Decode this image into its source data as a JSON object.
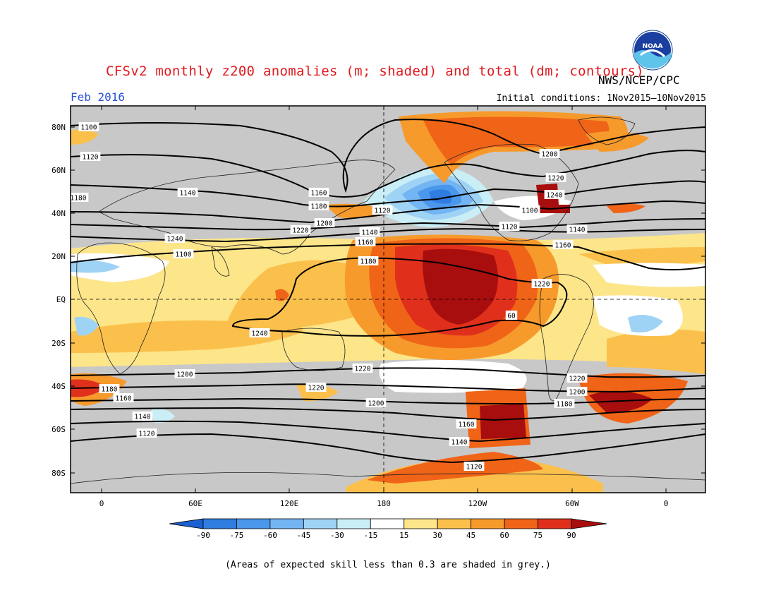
{
  "header": {
    "title": "CFSv2 monthly z200 anomalies (m; shaded) and total (dm; contours)",
    "agency": "NWS/NCEP/CPC",
    "month": "Feb 2016",
    "initial_conditions": "Initial conditions: 1Nov2015–10Nov2015",
    "logo_text": "NOAA"
  },
  "axes": {
    "lat_labels": [
      "80N",
      "60N",
      "40N",
      "20N",
      "EQ",
      "20S",
      "40S",
      "60S",
      "80S"
    ],
    "lon_labels": [
      "0",
      "60E",
      "120E",
      "180",
      "120W",
      "60W",
      "0"
    ]
  },
  "colorbar": {
    "ticks": [
      "-90",
      "-75",
      "-60",
      "-45",
      "-30",
      "-15",
      "15",
      "30",
      "45",
      "60",
      "75",
      "90"
    ],
    "colors": [
      "#1c5fd0",
      "#2f7de0",
      "#4a97ec",
      "#73b4f2",
      "#9fd3f5",
      "#c9eef6",
      "#ffffff",
      "#fde58a",
      "#fbc04c",
      "#f79a2c",
      "#f06418",
      "#e0301c",
      "#a80e0e"
    ]
  },
  "contour_labels": [
    "1100",
    "1120",
    "1140",
    "1160",
    "1180",
    "1200",
    "1220",
    "1240",
    "1100",
    "1120",
    "1140",
    "1160",
    "1180",
    "1200",
    "1220",
    "1240",
    "1100",
    "1120",
    "1140",
    "1160",
    "1180",
    "1200",
    "1220",
    "60",
    "1240",
    "1220",
    "1200",
    "1180",
    "1160",
    "1140",
    "1120",
    "1220",
    "1200",
    "1180",
    "1160",
    "1140",
    "1120",
    "1220",
    "1200",
    "1180",
    "1160"
  ],
  "footnote": "(Areas of expected skill less than 0.3 are shaded in grey.)",
  "colors": {
    "title": "#e0191e",
    "month": "#2a52d9",
    "low_skill_grey": "#c8c8c8"
  }
}
